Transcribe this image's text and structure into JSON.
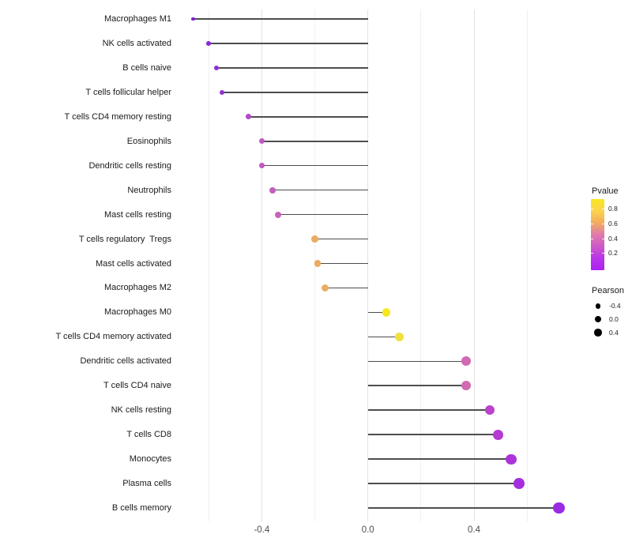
{
  "chart_data": {
    "type": "lollipop",
    "title": "",
    "xlabel": "",
    "ylabel": "",
    "xlim": [
      -0.73,
      0.79
    ],
    "x_ticks": [
      -0.4,
      0.0,
      0.4
    ],
    "x_tick_labels": [
      "-0.4",
      "0.0",
      "0.4"
    ],
    "gridline_values": [
      -0.6,
      -0.4,
      -0.2,
      0.0,
      0.2,
      0.4,
      0.6
    ],
    "major_gridline_values": [
      -0.4,
      0.0,
      0.4
    ],
    "grid": true,
    "stem_origin": 0.0,
    "points": [
      {
        "label": "Macrophages M1",
        "pearson": -0.66,
        "pvalue": 0.02,
        "color": "#7d23cb",
        "radius": 2.4
      },
      {
        "label": "NK cells activated",
        "pearson": -0.6,
        "pvalue": 0.05,
        "color": "#8929d3",
        "radius": 2.8
      },
      {
        "label": "B cells naive",
        "pearson": -0.57,
        "pvalue": 0.07,
        "color": "#9130d1",
        "radius": 3.0
      },
      {
        "label": "T cells follicular helper",
        "pearson": -0.55,
        "pvalue": 0.08,
        "color": "#9432d0",
        "radius": 3.1
      },
      {
        "label": "T cells CD4 memory resting",
        "pearson": -0.45,
        "pvalue": 0.25,
        "color": "#b14bc6",
        "radius": 3.4
      },
      {
        "label": "Eosinophils",
        "pearson": -0.4,
        "pvalue": 0.3,
        "color": "#c259c1",
        "radius": 3.7
      },
      {
        "label": "Dendritic cells resting",
        "pearson": -0.4,
        "pvalue": 0.3,
        "color": "#c158c1",
        "radius": 3.7
      },
      {
        "label": "Neutrophils",
        "pearson": -0.36,
        "pvalue": 0.33,
        "color": "#c55ebe",
        "radius": 3.9
      },
      {
        "label": "Mast cells resting",
        "pearson": -0.34,
        "pvalue": 0.34,
        "color": "#c763bc",
        "radius": 4.0
      },
      {
        "label": "T cells regulatory  Tregs",
        "pearson": -0.2,
        "pvalue": 0.65,
        "color": "#ebac60",
        "radius": 4.3
      },
      {
        "label": "Mast cells activated",
        "pearson": -0.19,
        "pvalue": 0.65,
        "color": "#eaab60",
        "radius": 4.3
      },
      {
        "label": "Macrophages M2",
        "pearson": -0.16,
        "pvalue": 0.66,
        "color": "#eaae62",
        "radius": 4.5
      },
      {
        "label": "Macrophages M0",
        "pearson": 0.07,
        "pvalue": 0.9,
        "color": "#f5e71e",
        "radius": 5.3
      },
      {
        "label": "T cells CD4 memory activated",
        "pearson": 0.12,
        "pvalue": 0.85,
        "color": "#efe13c",
        "radius": 5.5
      },
      {
        "label": "Dendritic cells activated",
        "pearson": 0.37,
        "pvalue": 0.4,
        "color": "#d169b5",
        "radius": 6.0
      },
      {
        "label": "T cells CD4 naive",
        "pearson": 0.37,
        "pvalue": 0.4,
        "color": "#d26ab2",
        "radius": 6.0
      },
      {
        "label": "NK cells resting",
        "pearson": 0.46,
        "pvalue": 0.18,
        "color": "#bc41cc",
        "radius": 6.3
      },
      {
        "label": "T cells CD8",
        "pearson": 0.49,
        "pvalue": 0.15,
        "color": "#b43ad3",
        "radius": 6.4
      },
      {
        "label": "Monocytes",
        "pearson": 0.54,
        "pvalue": 0.12,
        "color": "#ab34d9",
        "radius": 6.6
      },
      {
        "label": "Plasma cells",
        "pearson": 0.57,
        "pvalue": 0.1,
        "color": "#a32fdd",
        "radius": 6.8
      },
      {
        "label": "B cells memory",
        "pearson": 0.72,
        "pvalue": 0.05,
        "color": "#9a2ae3",
        "radius": 7.3
      }
    ],
    "legend_pvalue": {
      "title": "Pvalue",
      "tick_values": [
        0.8,
        0.6,
        0.4,
        0.2
      ],
      "tick_labels": [
        "0.8",
        "0.6",
        "0.4",
        "0.2"
      ],
      "gradient_top_to_bottom": [
        "#f9e721",
        "#fbd44c",
        "#f2ac5e",
        "#df7bac",
        "#ce58c7",
        "#b934ea",
        "#ac22f2"
      ],
      "legend_position": "right"
    },
    "legend_pearson": {
      "title": "Pearson",
      "entries": [
        {
          "label": "-0.4",
          "diameter": 6.6
        },
        {
          "label": "0.0",
          "diameter": 8.2
        },
        {
          "label": "0.4",
          "diameter": 9.6
        }
      ],
      "legend_position": "right"
    }
  }
}
